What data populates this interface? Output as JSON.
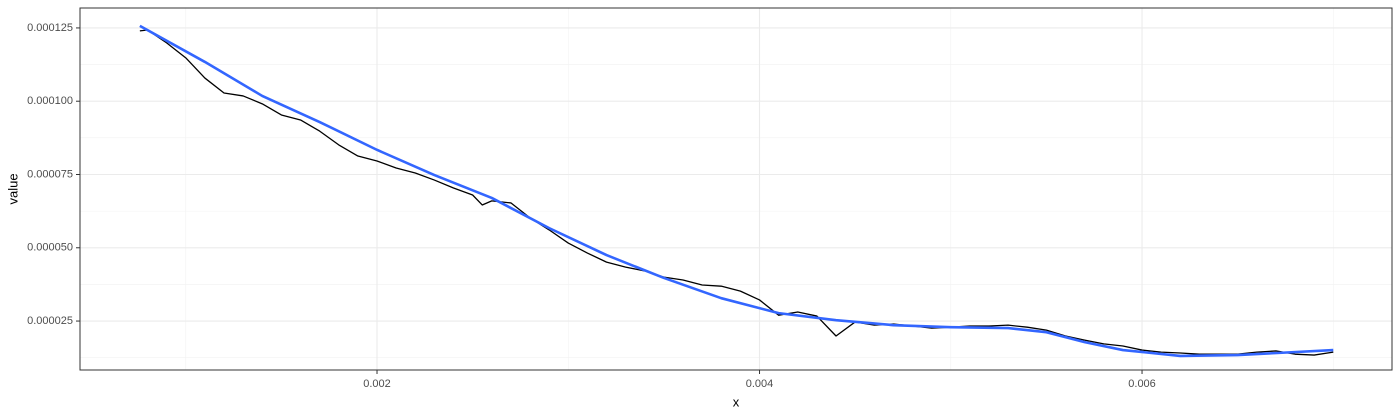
{
  "chart_data": {
    "type": "line",
    "xlabel": "x",
    "ylabel": "value",
    "xlim": [
      0.000447,
      0.007307
    ],
    "ylim": [
      8.3e-06,
      0.0001318
    ],
    "xticks": [
      0.002,
      0.004,
      0.006
    ],
    "yticks": [
      2.5e-05,
      {
        "value": 5e-05,
        "label": "0.000050"
      },
      7.5e-05,
      {
        "value": 0.0001,
        "label": "0.000100"
      },
      0.000125
    ],
    "grid": true,
    "series": [
      {
        "color": "#000000",
        "width": 1.3,
        "x": [
          0.00076,
          0.0008,
          0.0009,
          0.001,
          0.0011,
          0.0012,
          0.0013,
          0.0014,
          0.0015,
          0.0016,
          0.0017,
          0.0018,
          0.0019,
          0.002,
          0.0021,
          0.0022,
          0.0023,
          0.0024,
          0.0025,
          0.00255,
          0.0026,
          0.0027,
          0.0028,
          0.0029,
          0.003,
          0.0031,
          0.0032,
          0.0033,
          0.0034,
          0.0035,
          0.0036,
          0.0037,
          0.0038,
          0.0039,
          0.004,
          0.0041,
          0.0042,
          0.0043,
          0.0044,
          0.0045,
          0.0046,
          0.0047,
          0.0048,
          0.0049,
          0.005,
          0.0051,
          0.0052,
          0.0053,
          0.0054,
          0.0055,
          0.0056,
          0.0057,
          0.0058,
          0.0059,
          0.006,
          0.0061,
          0.0062,
          0.0063,
          0.0064,
          0.0065,
          0.0066,
          0.0067,
          0.0068,
          0.0069,
          0.007
        ],
        "values": [
          0.000124,
          0.0001243,
          0.0001199,
          0.0001148,
          0.0001079,
          0.0001028,
          0.0001018,
          9.91e-05,
          9.53e-05,
          9.36e-05,
          8.98e-05,
          8.51e-05,
          8.13e-05,
          7.96e-05,
          7.72e-05,
          7.55e-05,
          7.31e-05,
          7.04e-05,
          6.8e-05,
          6.46e-05,
          6.6e-05,
          6.53e-05,
          6.02e-05,
          5.61e-05,
          5.16e-05,
          4.82e-05,
          4.51e-05,
          4.34e-05,
          4.21e-05,
          4e-05,
          3.9e-05,
          3.73e-05,
          3.69e-05,
          3.52e-05,
          3.22e-05,
          2.7e-05,
          2.81e-05,
          2.67e-05,
          1.99e-05,
          2.47e-05,
          2.36e-05,
          2.4e-05,
          2.33e-05,
          2.26e-05,
          2.29e-05,
          2.33e-05,
          2.33e-05,
          2.36e-05,
          2.29e-05,
          2.19e-05,
          1.99e-05,
          1.85e-05,
          1.72e-05,
          1.65e-05,
          1.51e-05,
          1.44e-05,
          1.41e-05,
          1.37e-05,
          1.37e-05,
          1.37e-05,
          1.44e-05,
          1.48e-05,
          1.37e-05,
          1.34e-05,
          1.44e-05
        ]
      },
      {
        "color": "#3366FF",
        "width": 2.6,
        "x": [
          0.00076,
          0.0011,
          0.0014,
          0.0017,
          0.002,
          0.0023,
          0.0026,
          0.0029,
          0.0032,
          0.0035,
          0.0038,
          0.0041,
          0.0044,
          0.0047,
          0.005,
          0.0053,
          0.0055,
          0.0057,
          0.0059,
          0.0062,
          0.0065,
          0.007
        ],
        "values": [
          0.0001257,
          0.0001134,
          0.0001018,
          9.29e-05,
          8.34e-05,
          7.48e-05,
          6.7e-05,
          5.67e-05,
          4.75e-05,
          3.97e-05,
          3.28e-05,
          2.77e-05,
          2.53e-05,
          2.36e-05,
          2.29e-05,
          2.26e-05,
          2.12e-05,
          1.78e-05,
          1.51e-05,
          1.31e-05,
          1.34e-05,
          1.51e-05
        ]
      }
    ]
  }
}
